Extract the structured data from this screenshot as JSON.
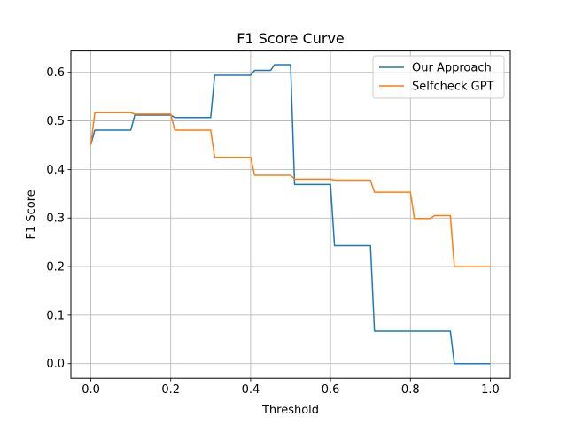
{
  "chart_data": {
    "type": "line",
    "title": "F1 Score Curve",
    "xlabel": "Threshold",
    "ylabel": "F1 Score",
    "xlim": [
      -0.05,
      1.05
    ],
    "ylim": [
      -0.03,
      0.644
    ],
    "grid": true,
    "legend_position": "top-right",
    "xticks": [
      0.0,
      0.2,
      0.4,
      0.6,
      0.8,
      1.0
    ],
    "xtick_labels": [
      "0.0",
      "0.2",
      "0.4",
      "0.6",
      "0.8",
      "1.0"
    ],
    "yticks": [
      0.0,
      0.1,
      0.2,
      0.3,
      0.4,
      0.5,
      0.6
    ],
    "ytick_labels": [
      "0.0",
      "0.1",
      "0.2",
      "0.3",
      "0.4",
      "0.5",
      "0.6"
    ],
    "series": [
      {
        "name": "Our Approach",
        "color": "#1f77b4",
        "x": [
          0.0,
          0.01,
          0.1,
          0.11,
          0.2,
          0.21,
          0.3,
          0.31,
          0.4,
          0.41,
          0.45,
          0.46,
          0.5,
          0.51,
          0.6,
          0.61,
          0.7,
          0.71,
          0.9,
          0.91,
          1.0
        ],
        "y": [
          0.451,
          0.481,
          0.481,
          0.512,
          0.512,
          0.507,
          0.507,
          0.594,
          0.594,
          0.604,
          0.604,
          0.616,
          0.616,
          0.369,
          0.369,
          0.243,
          0.243,
          0.067,
          0.067,
          0.0,
          0.0
        ]
      },
      {
        "name": "Selfcheck GPT",
        "color": "#ff7f0e",
        "x": [
          0.0,
          0.01,
          0.1,
          0.11,
          0.2,
          0.21,
          0.3,
          0.31,
          0.4,
          0.41,
          0.5,
          0.51,
          0.6,
          0.61,
          0.7,
          0.71,
          0.8,
          0.81,
          0.85,
          0.86,
          0.9,
          0.91,
          1.0
        ],
        "y": [
          0.451,
          0.517,
          0.517,
          0.514,
          0.514,
          0.481,
          0.481,
          0.425,
          0.425,
          0.388,
          0.388,
          0.38,
          0.38,
          0.378,
          0.378,
          0.353,
          0.353,
          0.299,
          0.299,
          0.305,
          0.305,
          0.2,
          0.2
        ]
      }
    ]
  }
}
